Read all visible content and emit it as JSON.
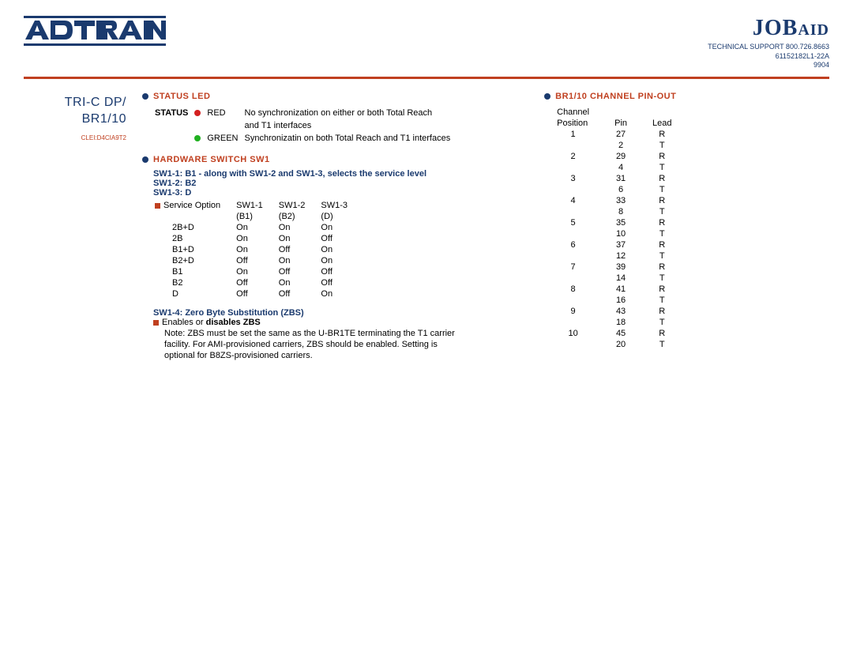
{
  "header": {
    "logo_text": "ADTRAN",
    "jobaid_main": "JOB",
    "jobaid_suffix": "AID",
    "support_line1": "TECHNICAL SUPPORT 800.726.8663",
    "support_line2": "61152182L1-22A",
    "support_line3": "9904"
  },
  "sidebar": {
    "title_line1": "TRI-C DP/",
    "title_line2": "BR1/10",
    "clei": "CLEI:D4CIA9T2"
  },
  "status_led": {
    "title": "STATUS LED",
    "label": "STATUS",
    "rows": [
      {
        "color": "red",
        "name": "RED",
        "desc1": "No synchronization on either or both Total Reach",
        "desc2": "and T1 interfaces"
      },
      {
        "color": "green",
        "name": "GREEN",
        "desc1": "Synchronizatin on both Total Reach and T1 interfaces",
        "desc2": ""
      }
    ]
  },
  "hw_switch": {
    "title": "HARDWARE SWITCH SW1",
    "line1": "SW1-1: B1 - along with SW1-2 and SW1-3, selects the service level",
    "line2": "SW1-2: B2",
    "line3": "SW1-3: D",
    "svc_label": "Service Option",
    "cols": [
      "SW1-1",
      "SW1-2",
      "SW1-3"
    ],
    "subcols": [
      "(B1)",
      "(B2)",
      "(D)"
    ],
    "rows": [
      [
        "2B+D",
        "On",
        "On",
        "On"
      ],
      [
        "2B",
        "On",
        "On",
        "Off"
      ],
      [
        "B1+D",
        "On",
        "Off",
        "On"
      ],
      [
        "B2+D",
        "Off",
        "On",
        "On"
      ],
      [
        "B1",
        "On",
        "Off",
        "Off"
      ],
      [
        "B2",
        "Off",
        "On",
        "Off"
      ],
      [
        "D",
        "Off",
        "Off",
        "On"
      ]
    ],
    "zbs_title": "SW1-4: Zero Byte Substitution (ZBS)",
    "zbs_enable_pre": "Enables or ",
    "zbs_enable_bold": "disables ZBS",
    "zbs_note": "Note: ZBS must be set the same as the U-BR1TE terminating the T1 carrier facility. For AMI-provisioned carriers, ZBS should be enabled. Setting is optional for B8ZS-provisioned carriers."
  },
  "pinout": {
    "title": "BR1/10 CHANNEL PIN-OUT",
    "hdr1": "Channel",
    "hdr2": "Position",
    "hdr3": "Pin",
    "hdr4": "Lead",
    "rows": [
      [
        "1",
        "27",
        "R"
      ],
      [
        "",
        "2",
        "T"
      ],
      [
        "2",
        "29",
        "R"
      ],
      [
        "",
        "4",
        "T"
      ],
      [
        "3",
        "31",
        "R"
      ],
      [
        "",
        "6",
        "T"
      ],
      [
        "4",
        "33",
        "R"
      ],
      [
        "",
        "8",
        "T"
      ],
      [
        "5",
        "35",
        "R"
      ],
      [
        "",
        "10",
        "T"
      ],
      [
        "6",
        "37",
        "R"
      ],
      [
        "",
        "12",
        "T"
      ],
      [
        "7",
        "39",
        "R"
      ],
      [
        "",
        "14",
        "T"
      ],
      [
        "8",
        "41",
        "R"
      ],
      [
        "",
        "16",
        "T"
      ],
      [
        "9",
        "43",
        "R"
      ],
      [
        "",
        "18",
        "T"
      ],
      [
        "10",
        "45",
        "R"
      ],
      [
        "",
        "20",
        "T"
      ]
    ]
  },
  "colors": {
    "brand_blue": "#1a3a6e",
    "brand_orange": "#c04020",
    "led_red": "#d42020",
    "led_green": "#20b020"
  }
}
